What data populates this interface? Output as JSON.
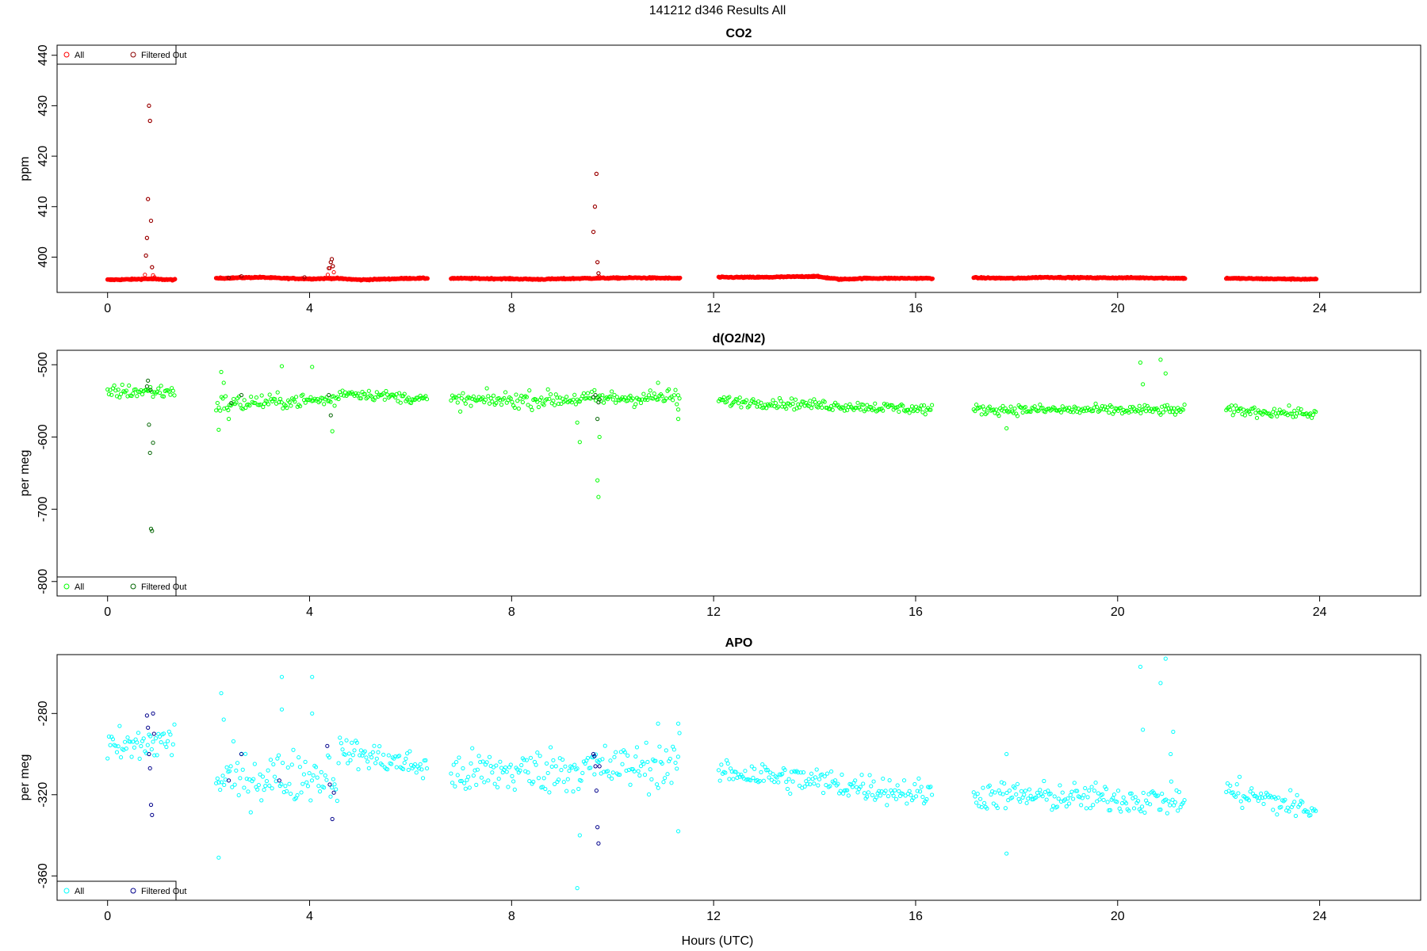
{
  "figure": {
    "title": "141212   d346   Results All",
    "xlabel": "Hours (UTC)"
  },
  "chart_data": [
    {
      "type": "scatter",
      "title": "CO2",
      "xlabel": "",
      "ylabel": "ppm",
      "xlim": [
        -1,
        26
      ],
      "ylim": [
        393,
        442
      ],
      "xticks": [
        0,
        4,
        8,
        12,
        16,
        20,
        24
      ],
      "yticks": [
        400,
        410,
        420,
        430,
        440
      ],
      "legend": "top-left",
      "series": [
        {
          "name": "All",
          "color": "#ff0000",
          "segments": [
            {
              "x": [
                0.0,
                0.5,
                0.8,
                1.0,
                1.35
              ],
              "y": [
                395.5,
                395.6,
                395.7,
                395.6,
                395.5
              ]
            },
            {
              "x": [
                2.15,
                3.0,
                3.5,
                4.0,
                4.5,
                5.0,
                6.0,
                6.35
              ],
              "y": [
                395.8,
                396.0,
                395.8,
                395.7,
                395.8,
                395.5,
                395.8,
                395.8
              ]
            },
            {
              "x": [
                6.8,
                8.0,
                8.5,
                9.5,
                10.5,
                11.35
              ],
              "y": [
                395.8,
                395.7,
                395.6,
                395.8,
                395.9,
                395.8
              ]
            },
            {
              "x": [
                12.1,
                13.0,
                14.0,
                14.5,
                15.0,
                16.35
              ],
              "y": [
                396.0,
                396.0,
                396.2,
                395.6,
                395.8,
                395.8
              ]
            },
            {
              "x": [
                17.15,
                18.0,
                18.5,
                19.5,
                20.5,
                21.35
              ],
              "y": [
                395.9,
                395.8,
                396.0,
                395.9,
                395.9,
                395.8
              ]
            },
            {
              "x": [
                22.15,
                23.0,
                23.95
              ],
              "y": [
                395.8,
                395.7,
                395.6
              ]
            }
          ],
          "spikes": [
            {
              "x": [
                0.74,
                0.76,
                0.78,
                0.8,
                0.82,
                0.84,
                0.86,
                0.88,
                0.9,
                0.93
              ],
              "y": [
                396.5,
                400.3,
                403.8,
                411.5,
                430.0,
                427.0,
                407.2,
                398.0,
                396.4,
                396.0
              ]
            },
            {
              "x": [
                4.36,
                4.4,
                4.42,
                4.44,
                4.46,
                4.48
              ],
              "y": [
                396.5,
                397.8,
                399.0,
                399.6,
                398.2,
                397.0
              ]
            },
            {
              "x": [
                9.62,
                9.65,
                9.68,
                9.7,
                9.72,
                9.74
              ],
              "y": [
                405.0,
                410.0,
                416.5,
                399.0,
                396.8,
                396.1
              ]
            }
          ]
        },
        {
          "name": "Filtered Out",
          "color": "#8b0000",
          "x": [
            0.76,
            0.78,
            0.8,
            0.82,
            0.84,
            0.86,
            0.88,
            2.4,
            2.65,
            3.9,
            4.38,
            4.42,
            4.44,
            4.46,
            9.62,
            9.65,
            9.68,
            9.7,
            9.72
          ],
          "y": [
            400.3,
            403.8,
            411.5,
            430.0,
            427.0,
            407.2,
            398.0,
            395.9,
            396.2,
            396.0,
            397.8,
            399.0,
            399.6,
            398.2,
            405.0,
            410.0,
            416.5,
            399.0,
            396.8
          ]
        }
      ]
    },
    {
      "type": "scatter",
      "title": "d(O2/N2)",
      "xlabel": "",
      "ylabel": "per meg",
      "xlim": [
        -1,
        26
      ],
      "ylim": [
        -820,
        -480
      ],
      "xticks": [
        0,
        4,
        8,
        12,
        16,
        20,
        24
      ],
      "yticks": [
        -800,
        -700,
        -600,
        -500
      ],
      "legend": "bottom-left",
      "series": [
        {
          "name": "All",
          "color": "#00ff00",
          "segments": [
            {
              "x0": 0.0,
              "x1": 1.35,
              "mean0": -537,
              "mean1": -537,
              "noise": 7
            },
            {
              "x0": 2.15,
              "x1": 3.0,
              "mean0": -555,
              "mean1": -552,
              "noise": 9
            },
            {
              "x0": 3.0,
              "x1": 4.6,
              "mean0": -552,
              "mean1": -548,
              "noise": 7
            },
            {
              "x0": 4.6,
              "x1": 6.35,
              "mean0": -538,
              "mean1": -548,
              "noise": 5
            },
            {
              "x0": 6.8,
              "x1": 11.35,
              "mean0": -550,
              "mean1": -545,
              "noise": 8
            },
            {
              "x0": 12.1,
              "x1": 16.35,
              "mean0": -550,
              "mean1": -562,
              "noise": 5
            },
            {
              "x0": 17.15,
              "x1": 21.35,
              "mean0": -562,
              "mean1": -563,
              "noise": 5
            },
            {
              "x0": 22.15,
              "x1": 23.95,
              "mean0": -563,
              "mean1": -568,
              "noise": 5
            }
          ],
          "outliers": {
            "x": [
              2.2,
              2.25,
              2.3,
              2.4,
              3.45,
              4.05,
              4.45,
              9.3,
              9.35,
              9.7,
              9.72,
              9.74,
              10.9,
              20.45,
              20.5,
              20.85,
              20.95,
              17.8,
              11.3,
              11.3
            ],
            "y": [
              -590,
              -510,
              -525,
              -575,
              -502,
              -503,
              -592,
              -580,
              -607,
              -660,
              -683,
              -600,
              -525,
              -497,
              -527,
              -493,
              -512,
              -588,
              -575,
              -562
            ]
          }
        },
        {
          "name": "Filtered Out",
          "color": "#006400",
          "x": [
            0.8,
            0.82,
            0.84,
            0.86,
            0.88,
            0.9,
            0.85,
            0.78,
            2.45,
            2.65,
            4.38,
            4.42,
            9.62,
            9.66,
            9.7,
            9.72,
            9.74
          ],
          "y": [
            -522,
            -583,
            -622,
            -727,
            -730,
            -608,
            -535,
            -530,
            -553,
            -542,
            -542,
            -570,
            -545,
            -542,
            -575,
            -552,
            -548
          ]
        }
      ]
    },
    {
      "type": "scatter",
      "title": "APO",
      "xlabel": "Hours (UTC)",
      "ylabel": "per meg",
      "xlim": [
        -1,
        26
      ],
      "ylim": [
        -372,
        -251
      ],
      "xticks": [
        0,
        4,
        8,
        12,
        16,
        20,
        24
      ],
      "yticks": [
        -360,
        -320,
        -280
      ],
      "legend": "bottom-left",
      "series": [
        {
          "name": "All",
          "color": "#00ffff",
          "segments": [
            {
              "x0": 0.0,
              "x1": 1.35,
              "mean0": -298,
              "mean1": -293,
              "noise": 7
            },
            {
              "x0": 2.15,
              "x1": 4.6,
              "mean0": -312,
              "mean1": -310,
              "noise": 9
            },
            {
              "x0": 4.6,
              "x1": 6.35,
              "mean0": -298,
              "mean1": -307,
              "noise": 5
            },
            {
              "x0": 6.8,
              "x1": 11.35,
              "mean0": -310,
              "mean1": -305,
              "noise": 8
            },
            {
              "x0": 12.1,
              "x1": 16.35,
              "mean0": -308,
              "mean1": -320,
              "noise": 5
            },
            {
              "x0": 17.15,
              "x1": 21.35,
              "mean0": -320,
              "mean1": -323,
              "noise": 5
            },
            {
              "x0": 22.15,
              "x1": 23.95,
              "mean0": -318,
              "mean1": -328,
              "noise": 5
            }
          ],
          "outliers": {
            "x": [
              2.2,
              2.25,
              2.3,
              3.45,
              3.45,
              4.05,
              4.05,
              9.3,
              9.35,
              10.9,
              11.3,
              11.3,
              17.8,
              17.8,
              20.45,
              20.5,
              20.85,
              20.95,
              21.05,
              21.1
            ],
            "y": [
              -351,
              -270,
              -283,
              -262,
              -278,
              -262,
              -280,
              -366,
              -340,
              -285,
              -338,
              -285,
              -349,
              -300,
              -257,
              -288,
              -265,
              -253,
              -300,
              -289
            ]
          }
        },
        {
          "name": "Filtered Out",
          "color": "#00008b",
          "x": [
            0.78,
            0.8,
            0.82,
            0.84,
            0.86,
            0.88,
            0.9,
            0.92,
            2.4,
            2.65,
            3.4,
            4.35,
            4.4,
            4.45,
            4.48,
            9.62,
            9.64,
            9.66,
            9.68,
            9.7,
            9.72,
            9.74
          ],
          "y": [
            -281,
            -287,
            -300,
            -307,
            -325,
            -330,
            -280,
            -290,
            -313,
            -300,
            -313,
            -296,
            -315,
            -332,
            -319,
            -300,
            -301,
            -306,
            -318,
            -336,
            -344,
            -306
          ]
        }
      ]
    }
  ]
}
